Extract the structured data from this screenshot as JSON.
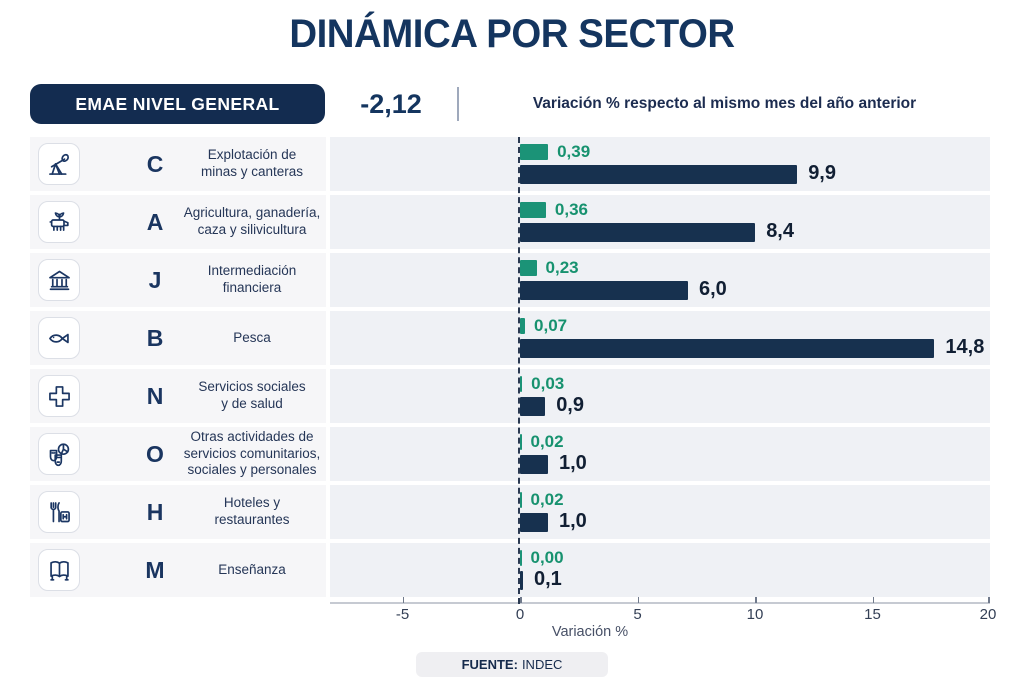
{
  "title": "DINÁMICA POR SECTOR",
  "header": {
    "badge_label": "EMAE NIVEL GENERAL",
    "emae_value": "-2,12",
    "subtitle": "Variación % respecto al mismo mes del año anterior"
  },
  "colors": {
    "navy_title": "#14355F",
    "navy_bar": "#17314F",
    "teal_bar": "#1B9377",
    "badge_bg": "#132C50",
    "band_bg": "#EFF1F5"
  },
  "chart_data": {
    "type": "bar",
    "orientation": "horizontal",
    "title": "DINÁMICA POR SECTOR",
    "xlabel": "Variación %",
    "axis": {
      "min": -5,
      "max": 20,
      "ticks": [
        -5,
        0,
        5,
        10,
        15,
        20
      ]
    },
    "categories": [
      "Explotación de minas y canteras",
      "Agricultura, ganadería, caza y silivicultura",
      "Intermediación financiera",
      "Pesca",
      "Servicios sociales y de salud",
      "Otras actividades de servicios comunitarios, sociales y personales",
      "Hoteles y restaurantes",
      "Enseñanza"
    ],
    "series": [
      {
        "name": "green-series",
        "color": "#1B9377",
        "values": [
          0.39,
          0.36,
          0.23,
          0.07,
          0.03,
          0.02,
          0.02,
          0.0
        ]
      },
      {
        "name": "navy-series",
        "color": "#17314F",
        "values": [
          9.9,
          8.4,
          6.0,
          14.8,
          0.9,
          1.0,
          1.0,
          0.1
        ]
      }
    ],
    "rows": [
      {
        "code": "C",
        "icon": "oil-pump-icon",
        "sector": "Explotación de\nminas y canteras",
        "green_label": "0,39",
        "green_value": 0.39,
        "navy_label": "9,9",
        "navy_value": 9.9
      },
      {
        "code": "A",
        "icon": "livestock-icon",
        "sector": "Agricultura, ganadería,\ncaza y silivicultura",
        "green_label": "0,36",
        "green_value": 0.36,
        "navy_label": "8,4",
        "navy_value": 8.4
      },
      {
        "code": "J",
        "icon": "bank-icon",
        "sector": "Intermediación\nfinanciera",
        "green_label": "0,23",
        "green_value": 0.23,
        "navy_label": "6,0",
        "navy_value": 6.0
      },
      {
        "code": "B",
        "icon": "fish-icon",
        "sector": "Pesca",
        "green_label": "0,07",
        "green_value": 0.07,
        "navy_label": "14,8",
        "navy_value": 14.8
      },
      {
        "code": "N",
        "icon": "medical-cross-icon",
        "sector": "Servicios sociales\ny de salud",
        "green_label": "0,03",
        "green_value": 0.03,
        "navy_label": "0,9",
        "navy_value": 0.9
      },
      {
        "code": "O",
        "icon": "theater-masks-icon",
        "sector": "Otras actividades de\nservicios comunitarios,\nsociales y personales",
        "green_label": "0,02",
        "green_value": 0.02,
        "navy_label": "1,0",
        "navy_value": 1.0
      },
      {
        "code": "H",
        "icon": "restaurant-hotel-icon",
        "sector": "Hoteles y\nrestaurantes",
        "green_label": "0,02",
        "green_value": 0.02,
        "navy_label": "1,0",
        "navy_value": 1.0
      },
      {
        "code": "M",
        "icon": "open-book-icon",
        "sector": "Enseñanza",
        "green_label": "0,00",
        "green_value": 0.0,
        "navy_label": "0,1",
        "navy_value": 0.1
      }
    ],
    "legend_position": "none",
    "grid": false
  },
  "footer": {
    "source_bold": "FUENTE:",
    "source_text": "INDEC"
  }
}
